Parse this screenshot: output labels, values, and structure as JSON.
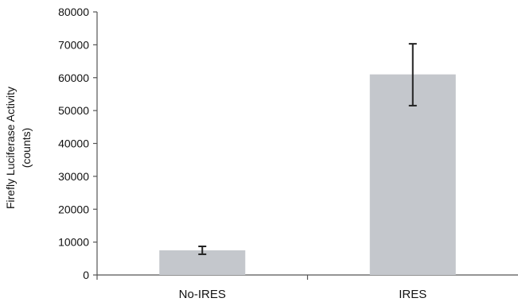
{
  "chart_data": {
    "type": "bar",
    "categories": [
      "No-IRES",
      "IRES"
    ],
    "values": [
      7500,
      61000
    ],
    "error_low": [
      6300,
      51500
    ],
    "error_high": [
      8700,
      70300
    ],
    "ylabel_line1": "Firefly Luciferase Activity",
    "ylabel_line2": "(counts)",
    "xlabel": "",
    "title": "",
    "ylim": [
      0,
      80000
    ],
    "yticks": [
      0,
      10000,
      20000,
      30000,
      40000,
      50000,
      60000,
      70000,
      80000
    ],
    "grid": false,
    "legend": "none"
  },
  "colors": {
    "bar": "#c4c7cc",
    "error_bar": "#222222",
    "axis": "#555555"
  }
}
